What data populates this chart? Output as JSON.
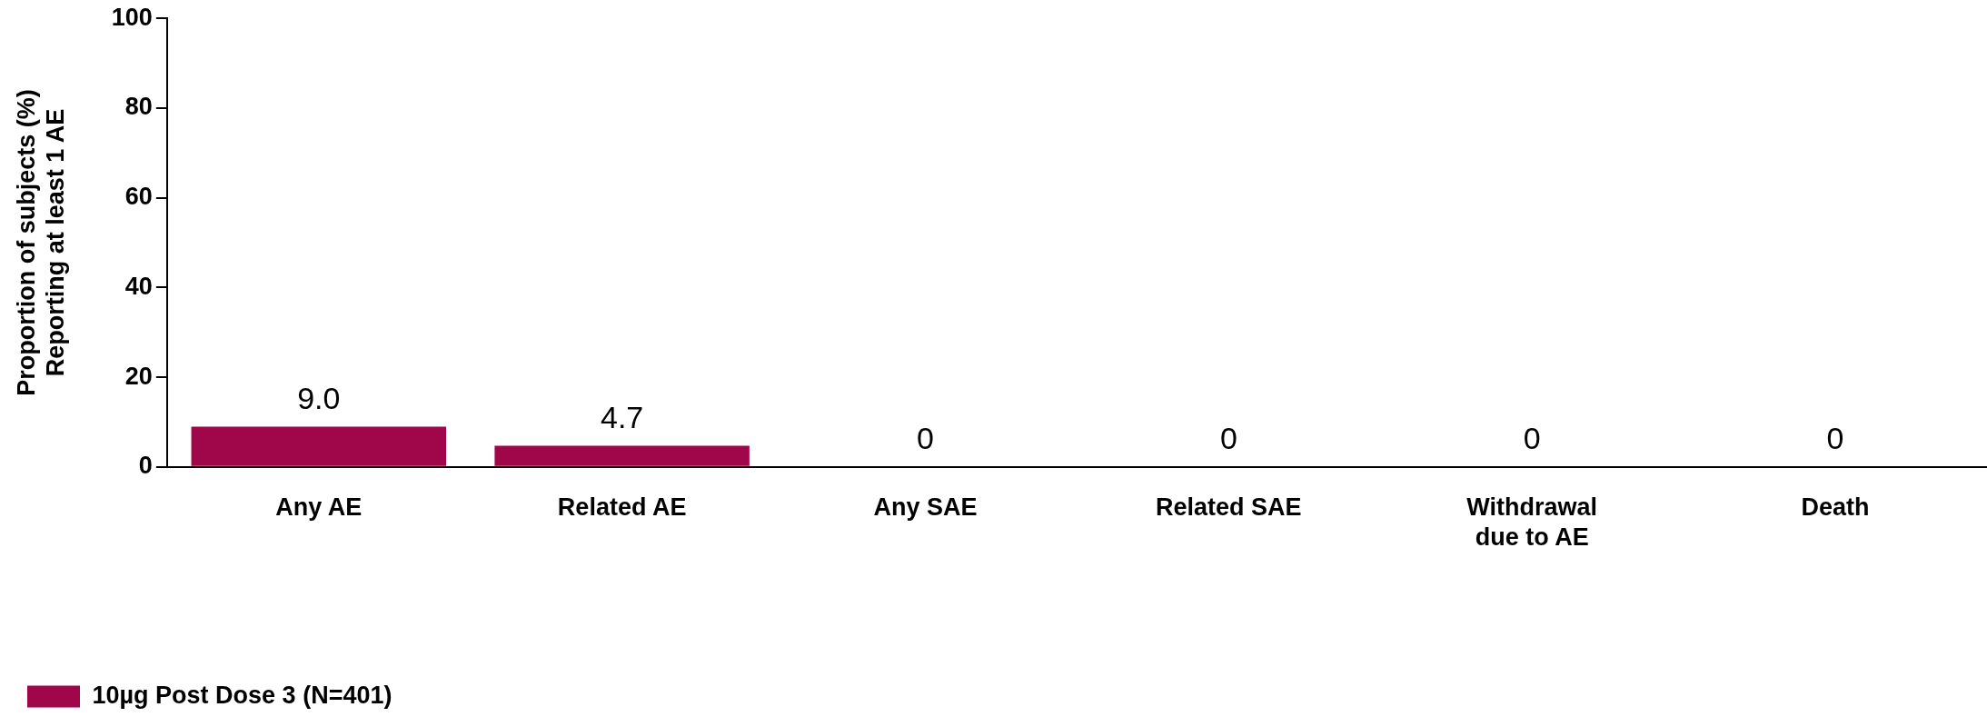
{
  "chart_data": {
    "type": "bar",
    "ylabel": "Proportion of subjects (%)\nReporting at least 1 AE",
    "categories": [
      "Any AE",
      "Related AE",
      "Any SAE",
      "Related SAE",
      "Withdrawal\ndue to AE",
      "Death"
    ],
    "series": [
      {
        "name": "10µg Post Dose 3 (N=401)",
        "color": "#a0064a",
        "values": [
          9.0,
          4.7,
          0,
          0,
          0,
          0
        ],
        "value_labels": [
          "9.0",
          "4.7",
          "0",
          "0",
          "0",
          "0"
        ]
      }
    ],
    "ylim": [
      0,
      100
    ],
    "yticks": [
      0,
      20,
      40,
      60,
      80,
      100
    ],
    "grid": false,
    "legend": "bottom left"
  }
}
